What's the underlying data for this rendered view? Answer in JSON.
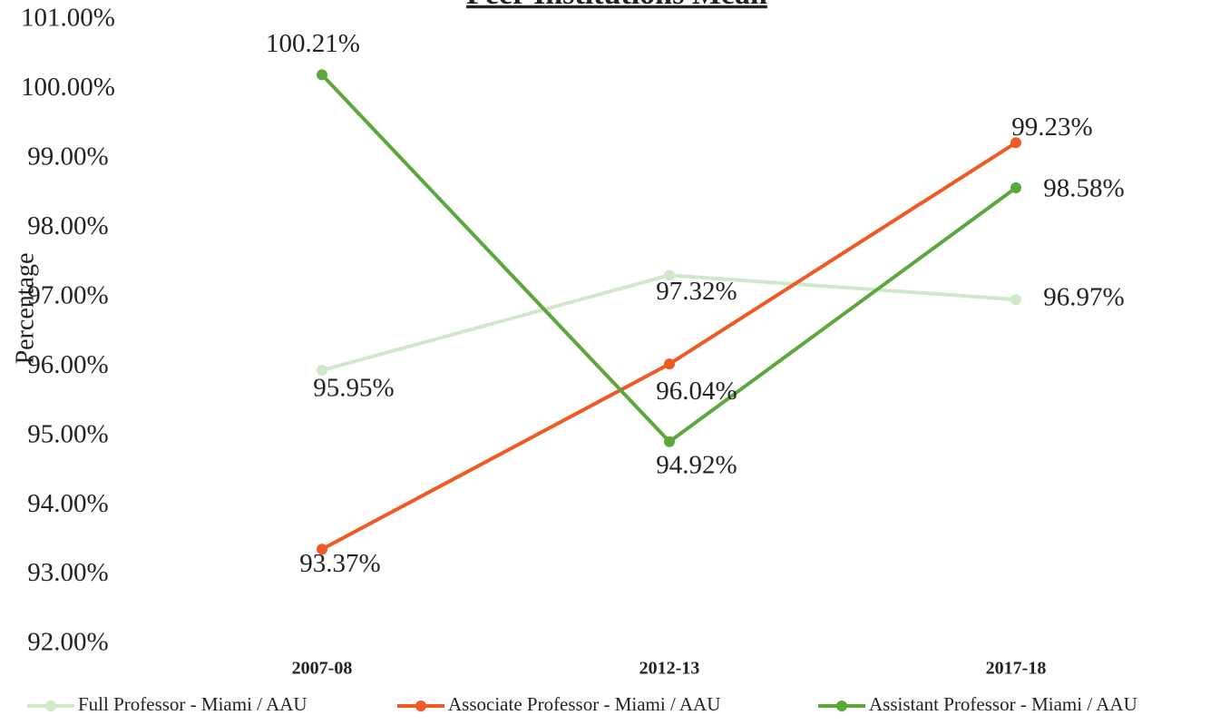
{
  "chart_data": {
    "type": "line",
    "title": "Peer Institutions Mean",
    "y_label": "Percentage",
    "categories": [
      "2007-08",
      "2012-13",
      "2017-18"
    ],
    "ylim": [
      92,
      101
    ],
    "yticks": [
      {
        "value": 92,
        "label": "92.00%"
      },
      {
        "value": 93,
        "label": "93.00%"
      },
      {
        "value": 94,
        "label": "94.00%"
      },
      {
        "value": 95,
        "label": "95.00%"
      },
      {
        "value": 96,
        "label": "96.00%"
      },
      {
        "value": 97,
        "label": "97.00%"
      },
      {
        "value": 98,
        "label": "98.00%"
      },
      {
        "value": 99,
        "label": "99.00%"
      },
      {
        "value": 100,
        "label": "100.00%"
      },
      {
        "value": 101,
        "label": "101.00%"
      }
    ],
    "legend": "bottom",
    "series": [
      {
        "name": "Full Professor - Miami / AAU",
        "color": "#cfe8c8",
        "values": [
          95.95,
          97.32,
          96.97
        ],
        "value_labels": [
          "95.95%",
          "97.32%",
          "96.97%"
        ]
      },
      {
        "name": "Associate Professor - Miami / AAU",
        "color": "#f05a22",
        "values": [
          93.37,
          96.04,
          99.23
        ],
        "value_labels": [
          "93.37%",
          "96.04%",
          "99.23%"
        ]
      },
      {
        "name": "Assistant Professor - Miami / AAU",
        "color": "#5aa73c",
        "values": [
          100.21,
          94.92,
          98.58
        ],
        "value_labels": [
          "100.21%",
          "94.92%",
          "98.58%"
        ]
      }
    ]
  }
}
